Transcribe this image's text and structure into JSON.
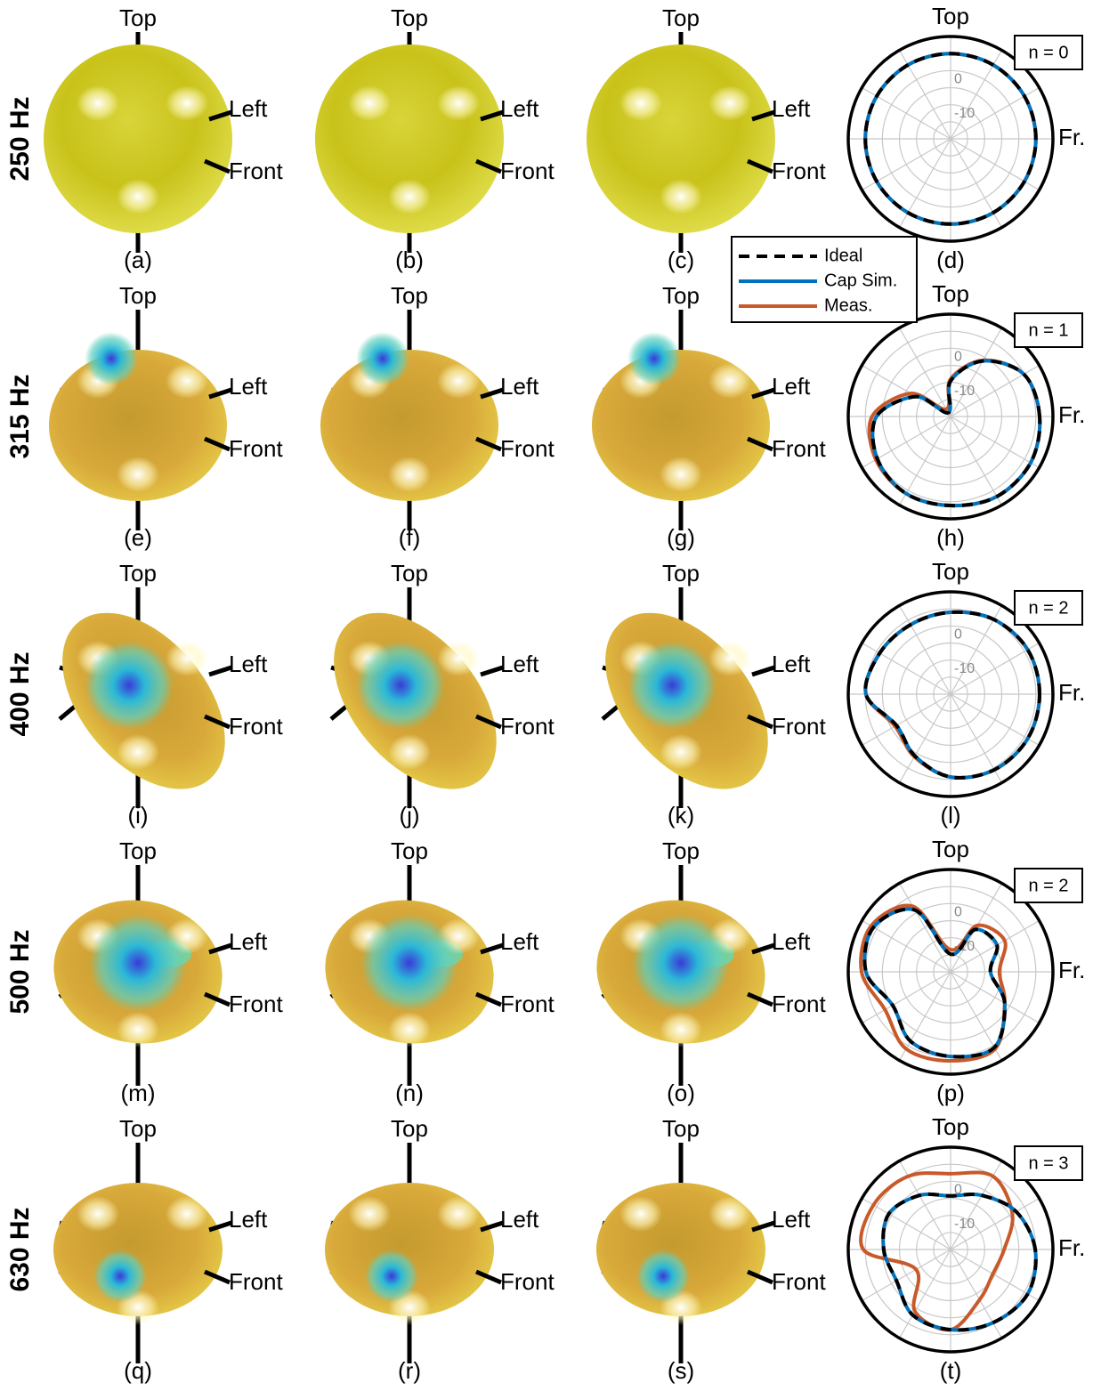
{
  "rows": [
    {
      "label": "250 Hz",
      "panels": [
        "(a)",
        "(b)",
        "(c)"
      ]
    },
    {
      "label": "315 Hz",
      "panels": [
        "(e)",
        "(f)",
        "(g)"
      ]
    },
    {
      "label": "400 Hz",
      "panels": [
        "(i)",
        "(j)",
        "(k)"
      ]
    },
    {
      "label": "500 Hz",
      "panels": [
        "(m)",
        "(n)",
        "(o)"
      ]
    },
    {
      "label": "630 Hz",
      "panels": [
        "(q)",
        "(r)",
        "(s)"
      ]
    }
  ],
  "axis_labels": {
    "top": "Top",
    "left": "Left",
    "front": "Front"
  },
  "chart_data": [
    {
      "type": "polar",
      "label": "(d)",
      "annotation": "n = 0",
      "rlim": [
        -20,
        10
      ],
      "rticks": [
        0,
        -10
      ],
      "rgrid": [
        -15,
        -10,
        -5,
        0,
        5
      ],
      "theta_labels": [
        {
          "value": 90,
          "label": "Top"
        },
        {
          "value": 0,
          "label": "Fr."
        }
      ],
      "theta": [
        0,
        30,
        60,
        90,
        120,
        150,
        180,
        210,
        240,
        270,
        300,
        330
      ],
      "series": [
        {
          "name": "Ideal",
          "color": "#000000",
          "dashed": true,
          "values": [
            5.0,
            5.0,
            5.0,
            5.0,
            5.0,
            5.0,
            5.0,
            5.0,
            5.0,
            5.0,
            5.0,
            5.0
          ]
        },
        {
          "name": "Cap Sim.",
          "color": "#0072bd",
          "values": [
            5.0,
            5.0,
            5.0,
            5.0,
            5.0,
            5.0,
            5.0,
            5.0,
            5.0,
            5.0,
            5.0,
            5.0
          ]
        },
        {
          "name": "Meas.",
          "color": "#c8592a",
          "values": [
            5.0,
            5.0,
            5.0,
            5.0,
            5.0,
            5.0,
            5.0,
            5.0,
            5.0,
            5.0,
            5.0,
            5.0
          ]
        }
      ]
    },
    {
      "type": "polar",
      "label": "(h)",
      "annotation": "n = 1",
      "rlim": [
        -20,
        10
      ],
      "rticks": [
        0,
        -10
      ],
      "rgrid": [
        -15,
        -10,
        -5,
        0,
        5
      ],
      "theta_labels": [
        {
          "value": 90,
          "label": "Top"
        },
        {
          "value": 0,
          "label": "Fr."
        }
      ],
      "theta": [
        0,
        30,
        60,
        90,
        120,
        150,
        180,
        210,
        240,
        270,
        300,
        330
      ],
      "series": [
        {
          "name": "Ideal",
          "color": "#000000",
          "dashed": true,
          "values": [
            6.1,
            4.8,
            -1.2,
            -9.6,
            -18.7,
            -8.3,
            1.7,
            4.8,
            6.1,
            6.1,
            7.1,
            7.1
          ]
        },
        {
          "name": "Cap Sim.",
          "color": "#0072bd",
          "values": [
            6.1,
            4.8,
            -1.2,
            -9.6,
            -18.7,
            -8.3,
            1.7,
            4.8,
            6.1,
            6.1,
            7.1,
            7.1
          ]
        },
        {
          "name": "Meas.",
          "color": "#c8592a",
          "values": [
            6.1,
            4.8,
            -1.0,
            -9.0,
            -17.5,
            -6.5,
            3.0,
            5.3,
            6.1,
            6.1,
            7.1,
            7.1
          ]
        }
      ]
    },
    {
      "type": "polar",
      "label": "(l)",
      "annotation": "n = 2",
      "rlim": [
        -20,
        10
      ],
      "rticks": [
        0,
        -10
      ],
      "rgrid": [
        -15,
        -10,
        -5,
        0,
        5
      ],
      "theta_labels": [
        {
          "value": 90,
          "label": "Top"
        },
        {
          "value": 0,
          "label": "Fr."
        }
      ],
      "theta": [
        0,
        30,
        60,
        90,
        120,
        150,
        180,
        210,
        240,
        270,
        300,
        330
      ],
      "series": [
        {
          "name": "Ideal",
          "color": "#000000",
          "dashed": true,
          "values": [
            6.1,
            6.1,
            5.3,
            4.0,
            3.5,
            4.0,
            4.8,
            -1.7,
            0.9,
            4.3,
            5.6,
            6.1
          ]
        },
        {
          "name": "Cap Sim.",
          "color": "#0072bd",
          "values": [
            6.1,
            6.1,
            5.3,
            4.0,
            3.5,
            4.0,
            4.8,
            -1.7,
            0.9,
            4.3,
            5.6,
            6.1
          ]
        },
        {
          "name": "Meas.",
          "color": "#c8592a",
          "values": [
            6.1,
            6.1,
            5.3,
            4.0,
            3.5,
            4.0,
            4.8,
            -1.2,
            1.2,
            4.3,
            5.6,
            6.1
          ]
        }
      ]
    },
    {
      "type": "polar",
      "label": "(p)",
      "annotation": "n = 2",
      "rlim": [
        -20,
        10
      ],
      "rticks": [
        0,
        -10
      ],
      "rgrid": [
        -15,
        -10,
        -5,
        0,
        5
      ],
      "theta_labels": [
        {
          "value": 90,
          "label": "Top"
        },
        {
          "value": 0,
          "label": "Fr."
        }
      ],
      "theta": [
        0,
        30,
        60,
        90,
        120,
        150,
        180,
        210,
        240,
        270,
        300,
        330
      ],
      "series": [
        {
          "name": "Ideal",
          "color": "#000000",
          "dashed": true,
          "values": [
            -8.3,
            -4.3,
            -5.7,
            -14.8,
            0.9,
            6.1,
            4.8,
            -0.4,
            3.5,
            4.8,
            5.6,
            -1.7
          ]
        },
        {
          "name": "Cap Sim.",
          "color": "#0072bd",
          "values": [
            -8.3,
            -4.3,
            -5.7,
            -14.8,
            0.9,
            6.1,
            4.8,
            -0.4,
            3.5,
            4.8,
            5.6,
            -1.7
          ]
        },
        {
          "name": "Meas.",
          "color": "#c8592a",
          "values": [
            -5.7,
            -1.7,
            -4.3,
            -13.5,
            2.2,
            6.9,
            6.1,
            2.2,
            6.1,
            6.1,
            6.1,
            -1.7
          ]
        }
      ]
    },
    {
      "type": "polar",
      "label": "(t)",
      "annotation": "n = 3",
      "rlim": [
        -20,
        10
      ],
      "rticks": [
        0,
        -10
      ],
      "rgrid": [
        -15,
        -10,
        -5,
        0,
        5
      ],
      "theta_labels": [
        {
          "value": 90,
          "label": "Top"
        },
        {
          "value": 0,
          "label": "Fr."
        }
      ],
      "theta": [
        0,
        30,
        60,
        90,
        120,
        150,
        180,
        210,
        240,
        270,
        300,
        330
      ],
      "series": [
        {
          "name": "Ideal",
          "color": "#000000",
          "dashed": true,
          "values": [
            4.8,
            2.2,
            -1.7,
            -4.3,
            -1.7,
            0.9,
            -0.4,
            -1.7,
            2.2,
            3.5,
            4.8,
            6.1
          ]
        },
        {
          "name": "Cap Sim.",
          "color": "#0072bd",
          "values": [
            4.8,
            2.2,
            -1.7,
            -4.3,
            -1.7,
            0.9,
            -0.4,
            -1.7,
            2.2,
            3.5,
            4.8,
            6.1
          ]
        },
        {
          "name": "Meas.",
          "color": "#c8592a",
          "values": [
            -4.3,
            0.9,
            4.8,
            2.2,
            4.8,
            6.1,
            5.6,
            -8.3,
            0.9,
            3.5,
            -3.0,
            -5.7
          ]
        }
      ]
    }
  ]
}
